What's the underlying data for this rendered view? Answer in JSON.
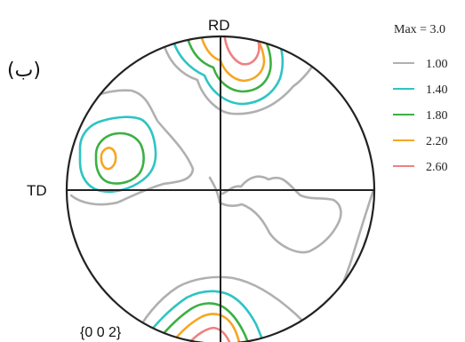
{
  "figure": {
    "panel_label": "(ب)",
    "rd_label": "RD",
    "td_label": "TD",
    "plane_label": "{0 0 2}"
  },
  "legend": {
    "max_label": "Max = 3.0",
    "levels": [
      {
        "value": "1.00",
        "color": "#b0b0b0"
      },
      {
        "value": "1.40",
        "color": "#2ec4c4"
      },
      {
        "value": "1.80",
        "color": "#3cb043"
      },
      {
        "value": "2.20",
        "color": "#f5a623"
      },
      {
        "value": "2.60",
        "color": "#f08080"
      }
    ]
  }
}
